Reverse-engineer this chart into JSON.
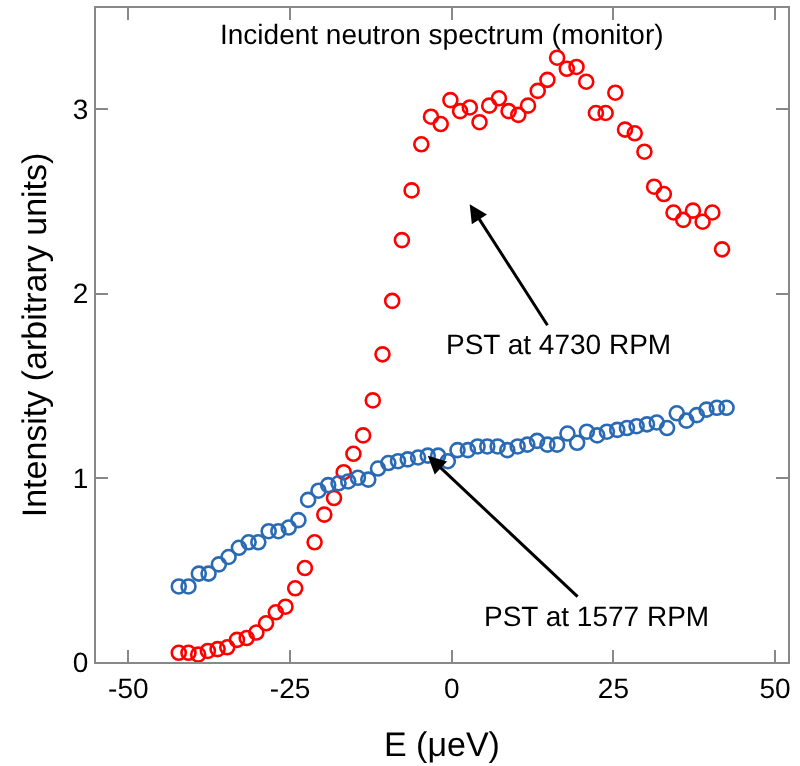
{
  "chart_data": {
    "type": "scatter",
    "title": "Incident neutron spectrum (monitor)",
    "xlabel": "E (μeV)",
    "ylabel": "Intensity (arbitrary units)",
    "xlim": [
      -55,
      52
    ],
    "ylim": [
      0,
      3.55
    ],
    "xticks": [
      -50,
      -25,
      0,
      25,
      50
    ],
    "yticks": [
      0,
      1,
      2,
      3
    ],
    "marker": "circle",
    "annotations": [
      "PST at 4730 RPM",
      {
        "text": "PST at 1577 RPM",
        "x": -3.7,
        "y": 1.12
      }
    ],
    "series": [
      {
        "color": "#ff0000",
        "x": [
          -42.2,
          -40.7,
          -39.2,
          -37.7,
          -36.2,
          -34.7,
          -33.2,
          -31.7,
          -30.2,
          -28.7,
          -27.2,
          -25.7,
          -24.2,
          -22.7,
          -21.2,
          -19.7,
          -18.2,
          -16.7,
          -15.2,
          -13.7,
          -12.2,
          -10.7,
          -9.2,
          -7.7,
          -6.2,
          -4.7,
          -3.2,
          -1.7,
          -0.2,
          1.3,
          2.8,
          4.3,
          5.8,
          7.3,
          8.8,
          10.3,
          11.8,
          13.3,
          14.8,
          16.3,
          17.8,
          19.3,
          20.8,
          22.3,
          23.8,
          25.3,
          26.8,
          28.3,
          29.8,
          31.3,
          32.8,
          34.3,
          35.8,
          37.3,
          38.8,
          40.3,
          41.8
        ],
        "values": [
          0.05,
          0.05,
          0.04,
          0.06,
          0.07,
          0.08,
          0.12,
          0.13,
          0.16,
          0.21,
          0.27,
          0.3,
          0.4,
          0.51,
          0.65,
          0.8,
          0.89,
          1.03,
          1.13,
          1.23,
          1.42,
          1.67,
          1.96,
          2.29,
          2.56,
          2.81,
          2.96,
          2.92,
          3.05,
          2.99,
          3.01,
          2.93,
          3.02,
          3.06,
          2.99,
          2.97,
          3.02,
          3.1,
          3.16,
          3.28,
          3.22,
          3.23,
          3.15,
          2.98,
          2.98,
          3.09,
          2.89,
          2.87,
          2.77,
          2.58,
          2.54,
          2.44,
          2.4,
          2.45,
          2.39,
          2.44,
          2.24
        ]
      },
      {
        "color": "#2a6ab4",
        "x": [
          -42.2,
          -40.7,
          -39.1,
          -37.6,
          -36.0,
          -34.5,
          -32.9,
          -31.4,
          -29.9,
          -28.3,
          -26.8,
          -25.2,
          -23.7,
          -22.2,
          -20.6,
          -19.1,
          -17.5,
          -16.0,
          -14.5,
          -12.9,
          -11.4,
          -9.8,
          -8.3,
          -6.8,
          -5.2,
          -3.7,
          -2.1,
          -0.6,
          0.9,
          2.5,
          4.0,
          5.5,
          7.1,
          8.6,
          10.2,
          11.7,
          13.2,
          14.8,
          16.3,
          17.9,
          19.4,
          20.9,
          22.5,
          24.0,
          25.6,
          27.1,
          28.6,
          30.2,
          31.7,
          33.3,
          34.8,
          36.3,
          37.9,
          39.4,
          41.0,
          42.5
        ],
        "values": [
          0.41,
          0.41,
          0.48,
          0.48,
          0.53,
          0.57,
          0.62,
          0.65,
          0.65,
          0.71,
          0.71,
          0.73,
          0.77,
          0.88,
          0.93,
          0.96,
          0.97,
          0.98,
          1.0,
          0.99,
          1.05,
          1.08,
          1.09,
          1.1,
          1.11,
          1.12,
          1.12,
          1.09,
          1.15,
          1.15,
          1.17,
          1.17,
          1.17,
          1.15,
          1.17,
          1.18,
          1.2,
          1.18,
          1.18,
          1.24,
          1.19,
          1.25,
          1.23,
          1.25,
          1.26,
          1.27,
          1.28,
          1.29,
          1.3,
          1.27,
          1.35,
          1.31,
          1.34,
          1.37,
          1.38,
          1.38
        ]
      }
    ]
  }
}
